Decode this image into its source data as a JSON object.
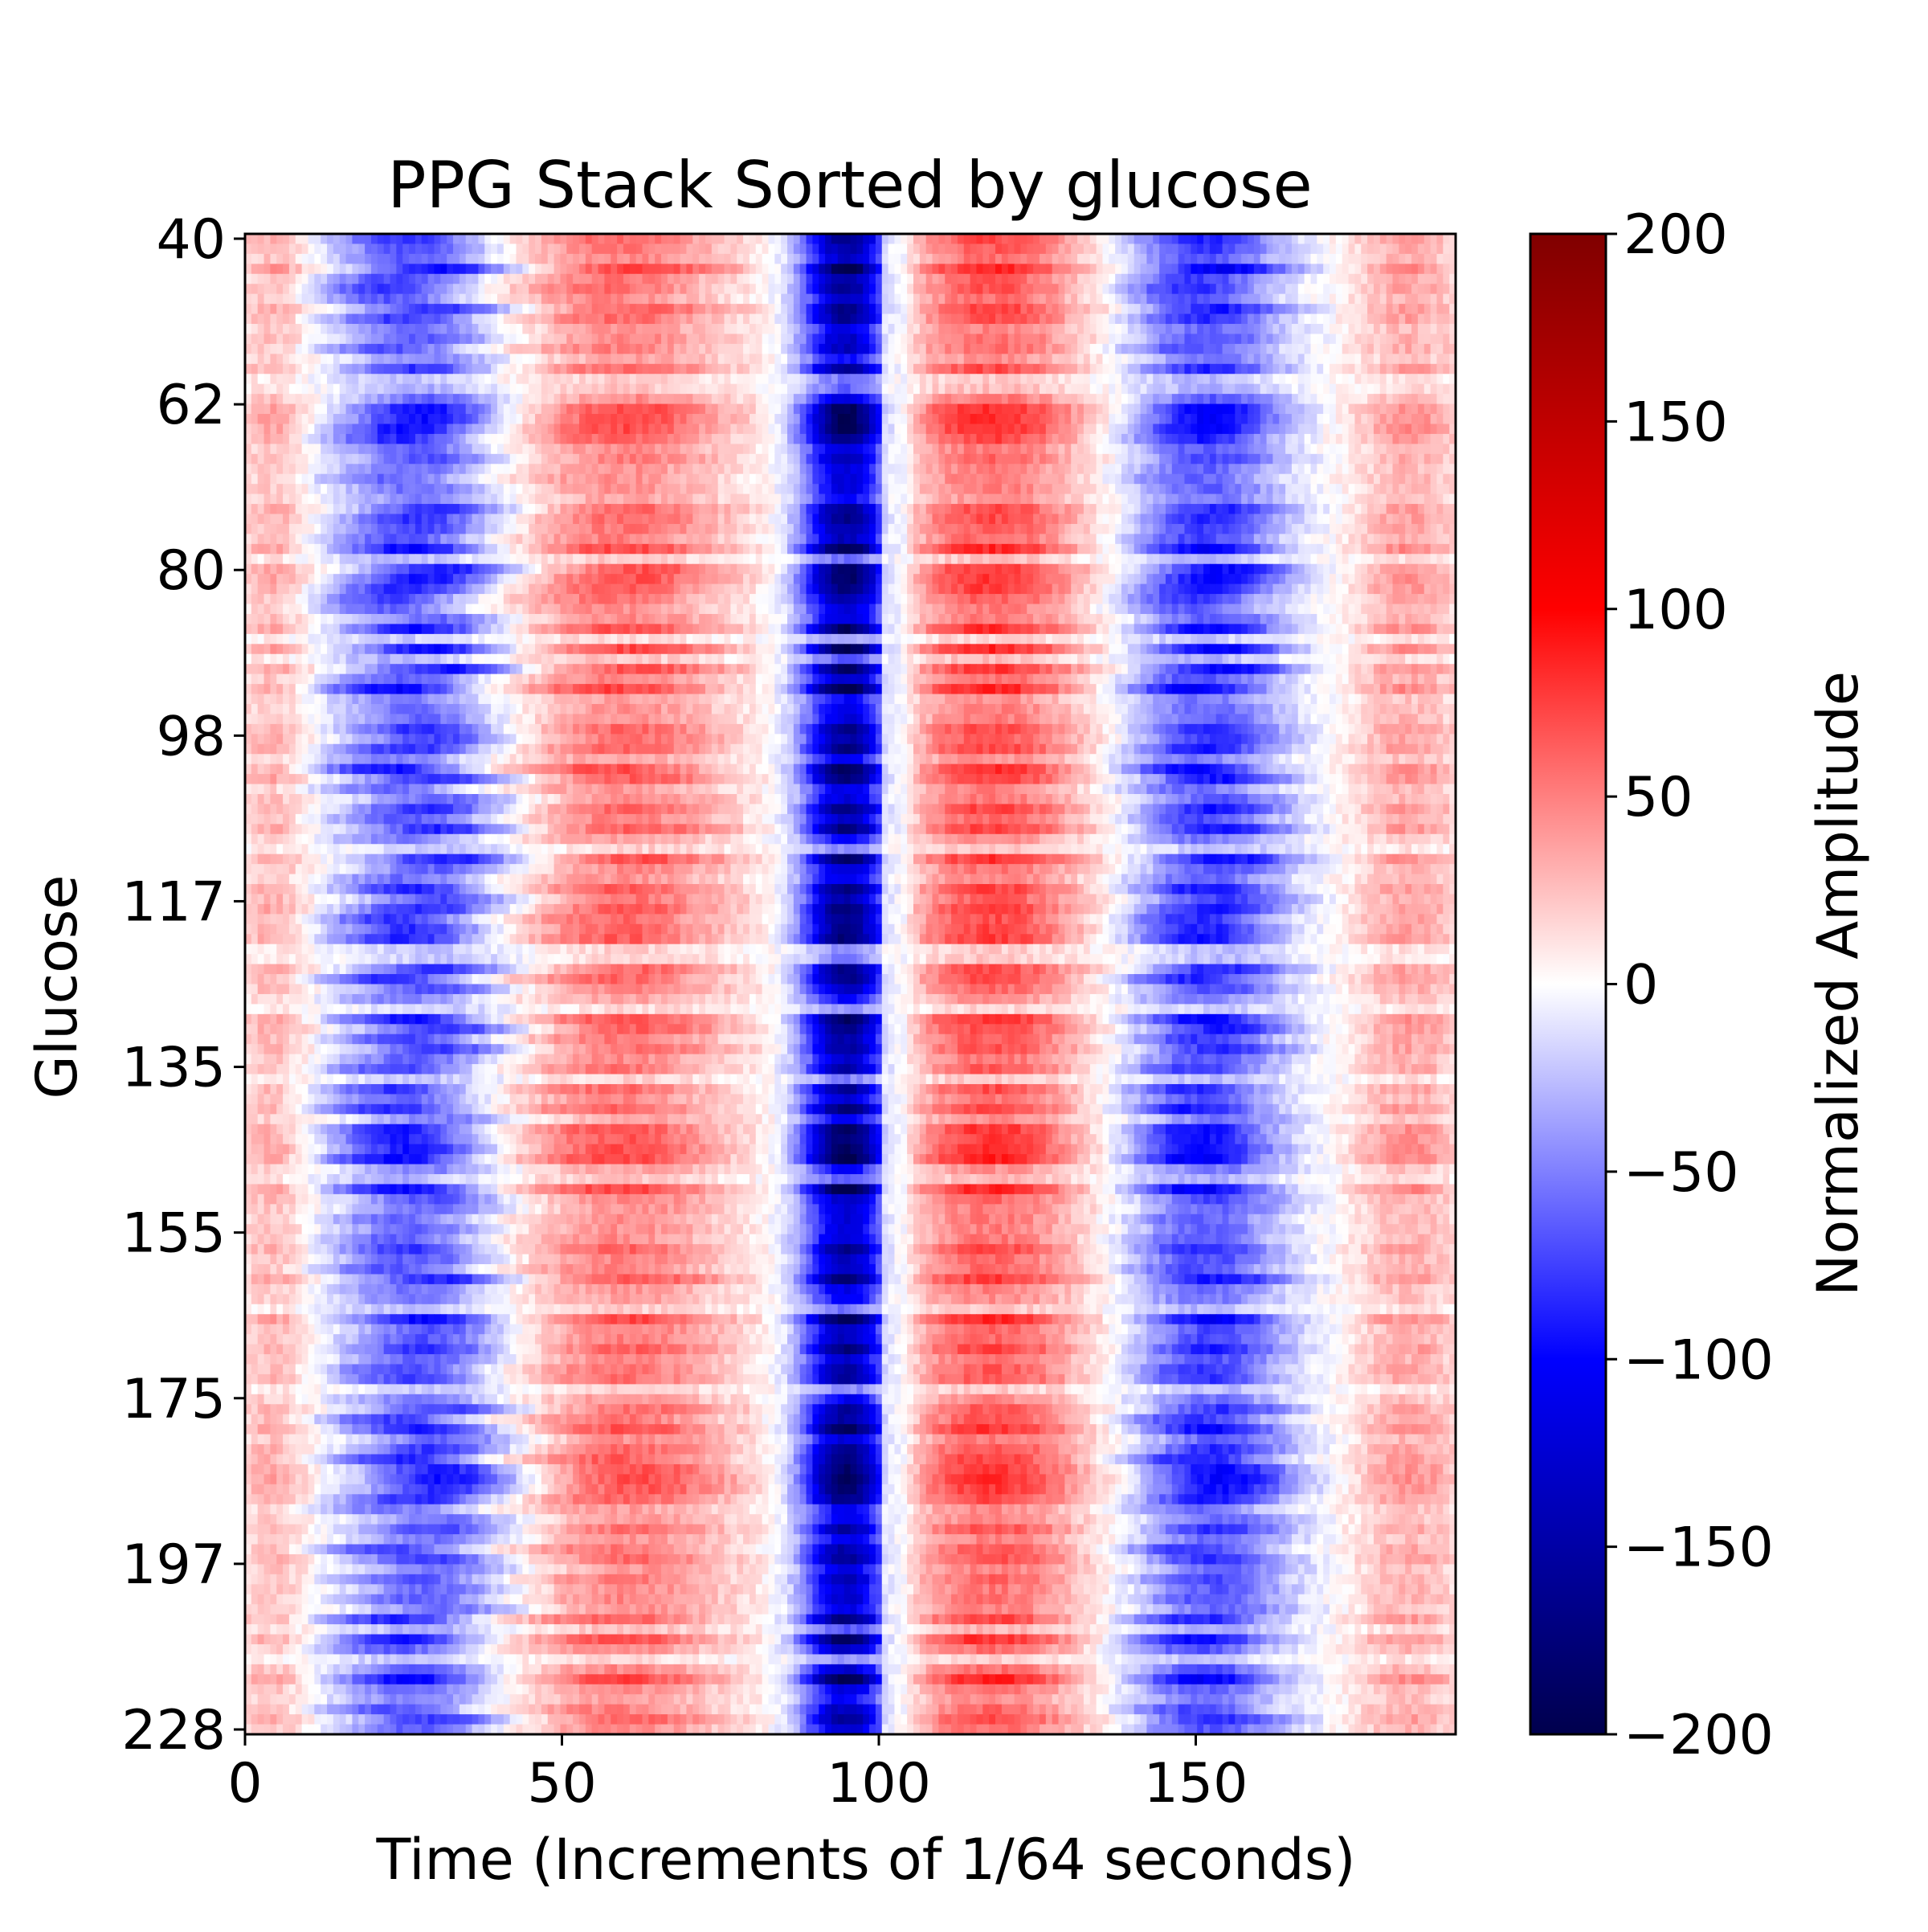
{
  "chart_data": {
    "type": "heatmap",
    "title": "PPG Stack Sorted by glucose",
    "xlabel": "Time (Increments of 1/64 seconds)",
    "ylabel": "Glucose",
    "colorbar_label": "Normalized Amplitude",
    "colormap": "seismic",
    "colormap_stops": [
      {
        "value": -200,
        "color": "#00004d"
      },
      {
        "value": -100,
        "color": "#0000ff"
      },
      {
        "value": 0,
        "color": "#ffffff"
      },
      {
        "value": 100,
        "color": "#ff0000"
      },
      {
        "value": 200,
        "color": "#800000"
      }
    ],
    "value_range": [
      -200,
      200
    ],
    "xlim": [
      0,
      191
    ],
    "x_ticks": [
      0,
      50,
      100,
      150
    ],
    "x_tick_labels": [
      "0",
      "50",
      "100",
      "150"
    ],
    "y_ticks": [
      40,
      62,
      80,
      98,
      117,
      135,
      155,
      175,
      197,
      228
    ],
    "y_tick_labels": [
      "40",
      "62",
      "80",
      "98",
      "117",
      "135",
      "155",
      "175",
      "197",
      "228"
    ],
    "colorbar_ticks": [
      200,
      150,
      100,
      50,
      0,
      -50,
      -100,
      -150,
      -200
    ],
    "colorbar_tick_labels": [
      "200",
      "150",
      "100",
      "50",
      "0",
      "−50",
      "−100",
      "−150",
      "−200"
    ],
    "rows": 150,
    "columns": 192,
    "pattern": "Each row is one PPG pulse (sorted by glucose, 40 at top to 228 at bottom). Strong negative trough (deep blue, about −150) near time 90–100 in every row; positive (red, about +50 to +100) regions near time 45–75 and 105–135; negative (blue, about −50 to −100) bands near time 15–40 and 140–165; white boundaries near 10, 40, 78, 102, 137 and 170."
  }
}
